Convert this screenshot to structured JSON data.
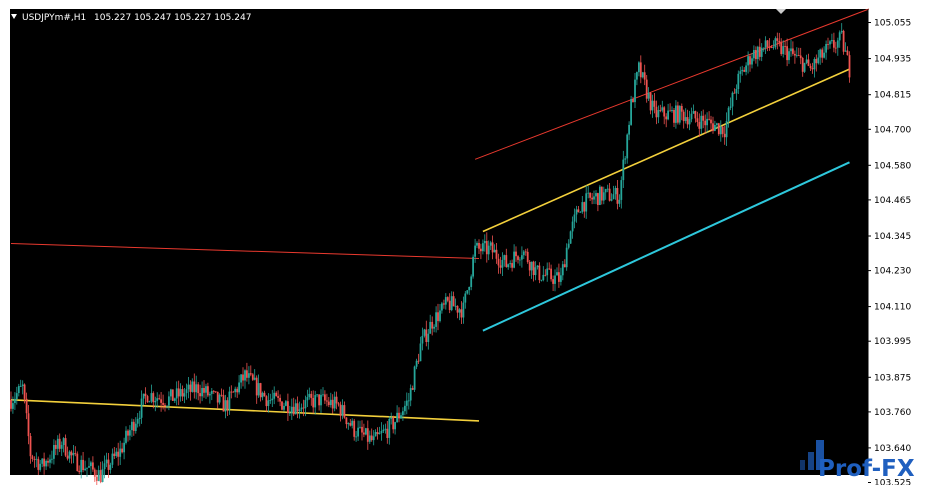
{
  "header": {
    "symbol": "USDJPYm#,H1",
    "quote": "105.227 105.247 105.227 105.247"
  },
  "logo": {
    "text": "Prof-FX"
  },
  "colors": {
    "background": "#000000",
    "bull": "#26a69a",
    "bear": "#ef5350",
    "channel_top": "#e8392e",
    "channel_mid": "#f3d03c",
    "channel_bottom": "#2ec8dc",
    "flat_high": "#e8392e",
    "flat_mid": "#f3d03c",
    "axis_bg": "#ffffff"
  },
  "chart_data": {
    "type": "candlestick",
    "symbol": "USDJPYm#",
    "timeframe": "H1",
    "ylim": [
      103.55,
      105.1
    ],
    "yticks": [
      "105.055",
      "104.935",
      "104.815",
      "104.700",
      "104.580",
      "104.465",
      "104.345",
      "104.230",
      "104.110",
      "103.995",
      "103.875",
      "103.760",
      "103.640",
      "103.525"
    ],
    "price_path": [
      [
        0,
        103.8
      ],
      [
        6,
        103.84
      ],
      [
        10,
        103.62
      ],
      [
        16,
        103.58
      ],
      [
        26,
        103.66
      ],
      [
        32,
        103.6
      ],
      [
        46,
        103.55
      ],
      [
        56,
        103.63
      ],
      [
        70,
        103.82
      ],
      [
        80,
        103.8
      ],
      [
        96,
        103.84
      ],
      [
        110,
        103.78
      ],
      [
        120,
        103.88
      ],
      [
        132,
        103.8
      ],
      [
        146,
        103.78
      ],
      [
        158,
        103.8
      ],
      [
        168,
        103.78
      ],
      [
        176,
        103.7
      ],
      [
        186,
        103.66
      ],
      [
        196,
        103.72
      ],
      [
        204,
        103.8
      ],
      [
        210,
        103.98
      ],
      [
        216,
        104.06
      ],
      [
        224,
        104.12
      ],
      [
        232,
        104.1
      ],
      [
        238,
        104.3
      ],
      [
        246,
        104.3
      ],
      [
        254,
        104.25
      ],
      [
        262,
        104.3
      ],
      [
        270,
        104.22
      ],
      [
        282,
        104.2
      ],
      [
        286,
        104.34
      ],
      [
        292,
        104.45
      ],
      [
        302,
        104.48
      ],
      [
        312,
        104.48
      ],
      [
        318,
        104.78
      ],
      [
        322,
        104.9
      ],
      [
        330,
        104.75
      ],
      [
        344,
        104.75
      ],
      [
        358,
        104.72
      ],
      [
        366,
        104.7
      ],
      [
        372,
        104.85
      ],
      [
        380,
        104.95
      ],
      [
        390,
        104.98
      ],
      [
        400,
        104.95
      ],
      [
        410,
        104.9
      ],
      [
        418,
        104.96
      ],
      [
        426,
        105.0
      ],
      [
        430,
        104.9
      ]
    ],
    "lines": [
      {
        "name": "",
        "color_key": "channel_top",
        "from": [
          238,
          104.6
        ],
        "to": [
          440,
          105.1
        ],
        "width": 1
      },
      {
        "name": "",
        "color_key": "channel_mid",
        "from": [
          242,
          104.36
        ],
        "to": [
          430,
          104.9
        ],
        "width": 1.6
      },
      {
        "name": "",
        "color_key": "channel_bottom",
        "from": [
          242,
          104.03
        ],
        "to": [
          430,
          104.59
        ],
        "width": 2
      },
      {
        "name": "",
        "color_key": "flat_high",
        "from": [
          0,
          104.32
        ],
        "to": [
          240,
          104.27
        ],
        "width": 1
      },
      {
        "name": "",
        "color_key": "flat_mid",
        "from": [
          0,
          103.8
        ],
        "to": [
          240,
          103.73
        ],
        "width": 1.6
      }
    ]
  }
}
